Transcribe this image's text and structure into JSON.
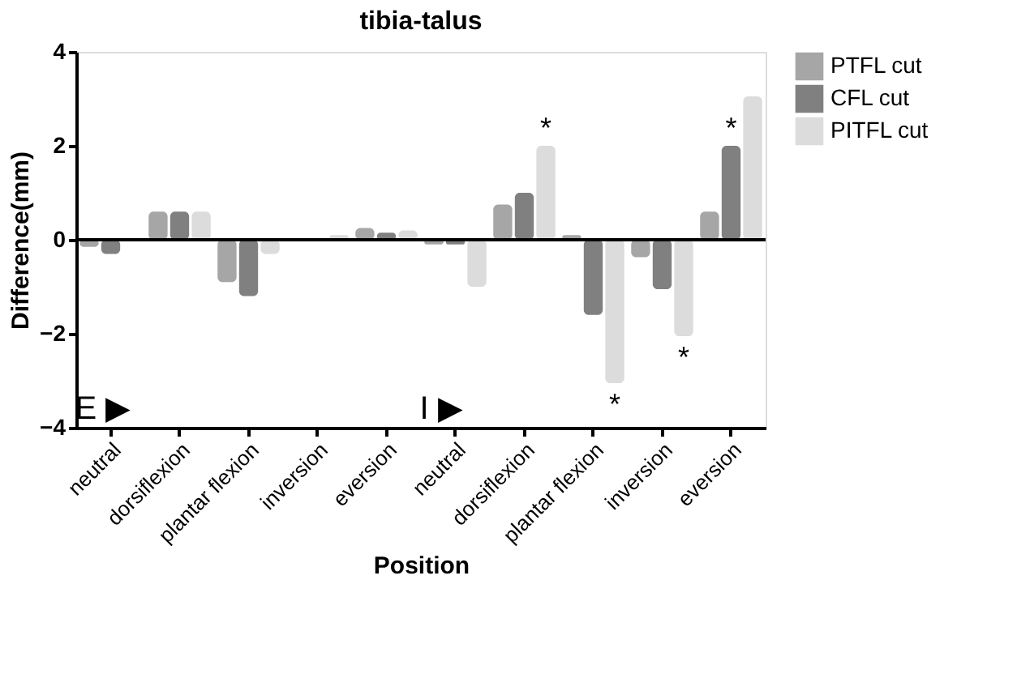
{
  "chart_data": {
    "type": "bar",
    "title": "tibia-talus",
    "xlabel": "Position",
    "ylabel": "Difference(mm)",
    "categories": [
      "neutral",
      "dorsiflexion",
      "plantar flexion",
      "inversion",
      "eversion",
      "neutral",
      "dorsiflexion",
      "plantar flexion",
      "inversion",
      "eversion"
    ],
    "series": [
      {
        "name": "PTFL cut",
        "color": "#a6a6a6",
        "values": [
          -0.15,
          0.6,
          -0.9,
          null,
          0.25,
          -0.1,
          0.75,
          0.1,
          -0.37,
          0.6
        ]
      },
      {
        "name": "CFL cut",
        "color": "#808080",
        "values": [
          -0.3,
          0.6,
          -1.2,
          null,
          0.15,
          -0.1,
          1.0,
          -1.6,
          -1.05,
          2.0
        ]
      },
      {
        "name": "PITFL cut",
        "color": "#dcdcdc",
        "values": [
          null,
          0.6,
          -0.3,
          0.1,
          0.2,
          -1.0,
          2.0,
          -3.05,
          -2.05,
          3.05
        ]
      }
    ],
    "ylim": [
      -4,
      4
    ],
    "yticks": [
      -4,
      -2,
      0,
      2,
      4
    ],
    "grid": false,
    "legend": "top right",
    "ref_lines": [
      {
        "axis": "y",
        "value": 0
      }
    ],
    "annotations": [
      "E ▶",
      "I ▶",
      "*",
      "*",
      "*",
      "*"
    ]
  }
}
